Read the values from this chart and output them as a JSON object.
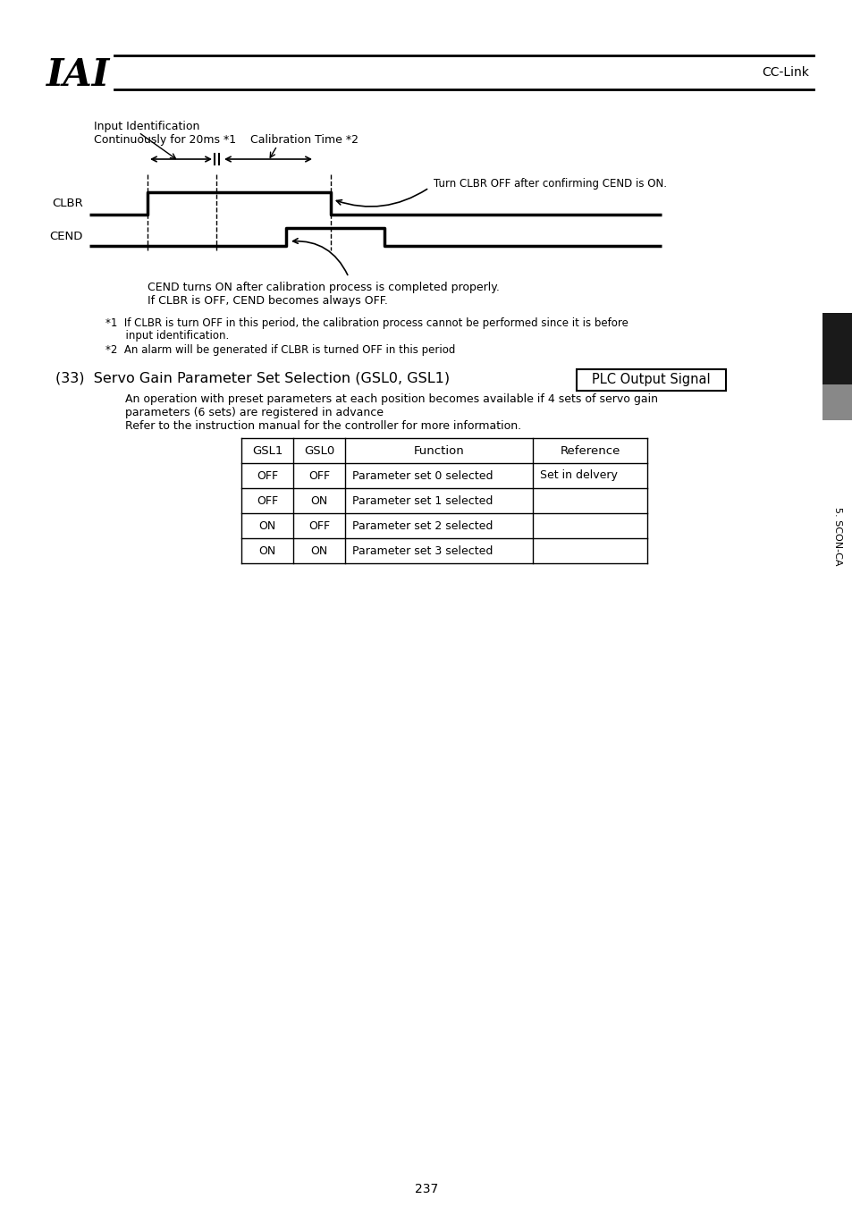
{
  "bg_color": "#ffffff",
  "logo_text": "IAI",
  "cc_link_text": "CC-Link",
  "page_number": "237",
  "sidebar_text": "5. SCON-CA",
  "title33": "(33)  Servo Gain Parameter Set Selection (GSL0, GSL1)",
  "plc_box_text": "PLC Output Signal",
  "desc_lines": [
    "An operation with preset parameters at each position becomes available if 4 sets of servo gain",
    "parameters (6 sets) are registered in advance",
    "Refer to the instruction manual for the controller for more information."
  ],
  "diagram_label1": "Input Identification",
  "diagram_label2": "Continuously for 20ms *1",
  "diagram_label3": "Calibration Time *2",
  "diagram_note": "Turn CLBR OFF after confirming CEND is ON.",
  "clbr_label": "CLBR",
  "cend_label": "CEND",
  "cend_note1": "CEND turns ON after calibration process is completed properly.",
  "cend_note2": "If CLBR is OFF, CEND becomes always OFF.",
  "footnote1": "*1  If CLBR is turn OFF in this period, the calibration process cannot be performed since it is before",
  "footnote1b": "      input identification.",
  "footnote2": "*2  An alarm will be generated if CLBR is turned OFF in this period",
  "table_headers": [
    "GSL1",
    "GSL0",
    "Function",
    "Reference"
  ],
  "table_rows": [
    [
      "OFF",
      "OFF",
      "Parameter set 0 selected",
      "Set in delvery"
    ],
    [
      "OFF",
      "ON",
      "Parameter set 1 selected",
      ""
    ],
    [
      "ON",
      "OFF",
      "Parameter set 2 selected",
      ""
    ],
    [
      "ON",
      "ON",
      "Parameter set 3 selected",
      ""
    ]
  ]
}
